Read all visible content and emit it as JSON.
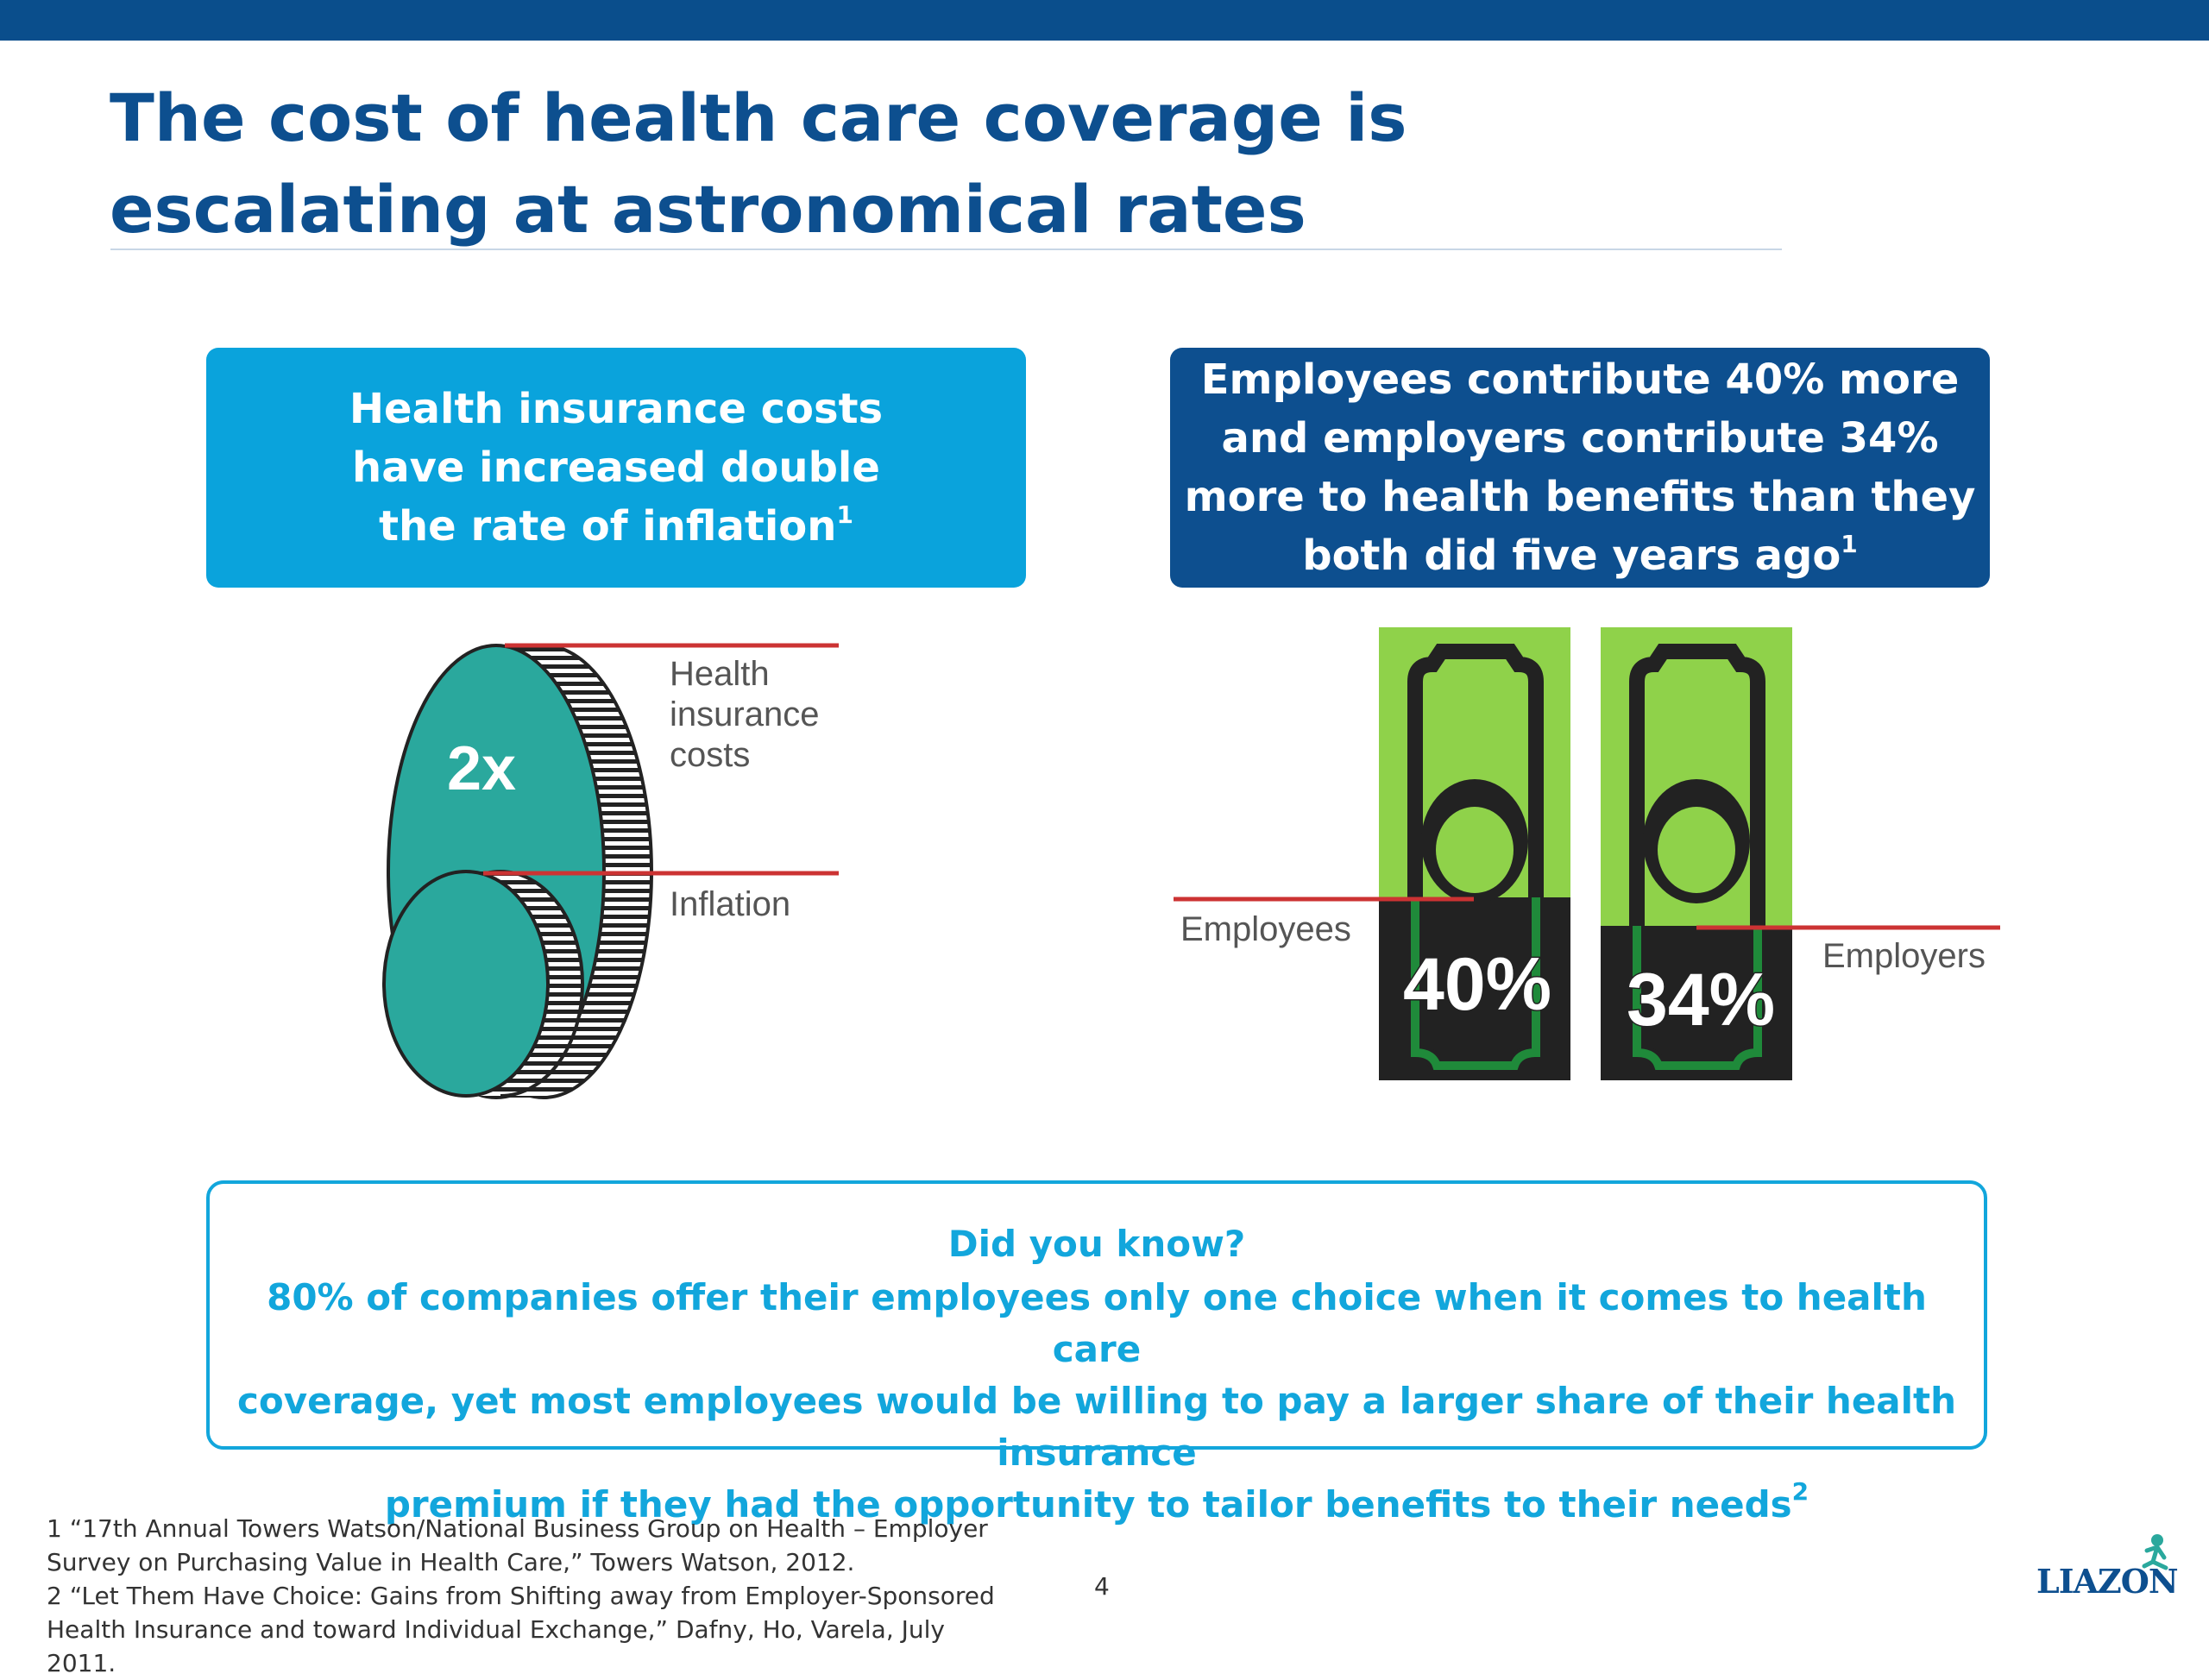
{
  "slide": {
    "title": "The cost of health care coverage is escalating at astronomical rates",
    "left_box": {
      "text_lines": [
        "Health insurance costs",
        "have increased double",
        "the rate of inflation"
      ],
      "sup": "1"
    },
    "right_box": {
      "text_lines": [
        "Employees contribute 40% more",
        "and employers contribute 34%",
        "more to health benefits than they",
        "both did five years ago"
      ],
      "sup": "1"
    },
    "coin_graphic": {
      "multiplier_label": "2x",
      "health_label_lines": [
        "Health",
        "insurance",
        "costs"
      ],
      "inflation_label": "Inflation"
    },
    "money_graphic": {
      "employees_label": "Employees",
      "employers_label": "Employers",
      "employees_pct": "40%",
      "employers_pct": "34%"
    },
    "did_you_know": {
      "title": "Did you know?",
      "text_lines": [
        "80% of companies offer their employees only one choice when it comes to health care",
        "coverage, yet most employees would be willing to pay a larger share of their health insurance",
        "premium if they had the opportunity to tailor benefits to their needs"
      ],
      "sup": "2"
    },
    "footnotes": [
      "1 “17th Annual Towers Watson/National Business Group on Health – Employer",
      "Survey on Purchasing Value in Health Care,” Towers Watson, 2012.",
      "2 “Let Them Have Choice: Gains from Shifting away from Employer-Sponsored",
      "Health Insurance and toward Individual Exchange,” Dafny, Ho, Varela, July 2011."
    ],
    "page_number": "4",
    "logo_text": "LIAZON",
    "colors": {
      "top_bar": "#0a4e8c",
      "title": "#0d4f8f",
      "light_blue": "#0aa3dc",
      "dark_blue": "#0d4f8f",
      "teal": "#2aa89d",
      "bill_green": "#8fd24a",
      "red_line": "#cc3333"
    }
  }
}
